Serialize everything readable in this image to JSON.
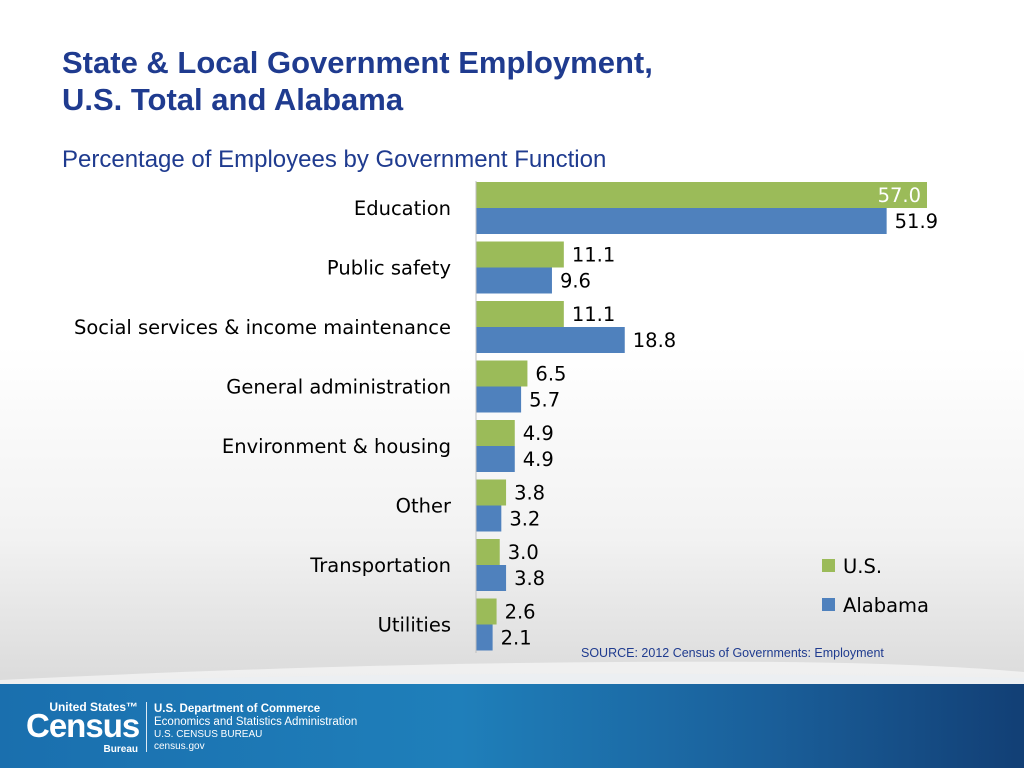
{
  "slide": {
    "title_line1": "State & Local Government Employment,",
    "title_line2": "U.S. Total and Alabama",
    "subtitle": "Percentage of Employees by Government Function",
    "source": "SOURCE: 2012 Census of Governments: Employment"
  },
  "footer": {
    "logo_top": "United States™",
    "logo_main": "Census",
    "logo_bottom": "Bureau",
    "dept": "U.S. Department of Commerce",
    "admin": "Economics and Statistics Administration",
    "bureau": "U.S. CENSUS BUREAU",
    "site": "census.gov"
  },
  "chart_data": {
    "type": "bar",
    "orientation": "horizontal",
    "categories": [
      "Education",
      "Public safety",
      "Social services & income maintenance",
      "General administration",
      "Environment & housing",
      "Other ",
      "Transportation",
      "Utilities"
    ],
    "series": [
      {
        "name": "U.S.",
        "color": "#9bbb59",
        "values": [
          57.0,
          11.1,
          11.1,
          6.5,
          4.9,
          3.8,
          3.0,
          2.6
        ]
      },
      {
        "name": "Alabama",
        "color": "#4f81bd",
        "values": [
          51.9,
          9.6,
          18.8,
          5.7,
          4.9,
          3.2,
          3.8,
          2.1
        ]
      }
    ],
    "xlim": [
      0,
      57.0
    ],
    "grid": false,
    "legend_position": "bottom-right",
    "data_labels": true
  }
}
